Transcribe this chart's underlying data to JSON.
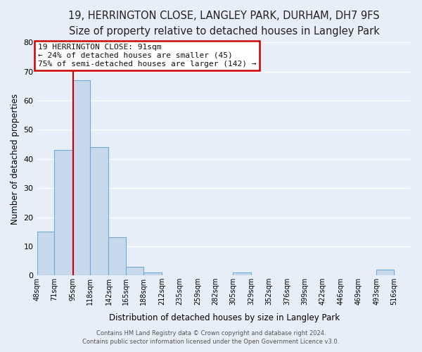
{
  "title": "19, HERRINGTON CLOSE, LANGLEY PARK, DURHAM, DH7 9FS",
  "subtitle": "Size of property relative to detached houses in Langley Park",
  "xlabel": "Distribution of detached houses by size in Langley Park",
  "ylabel": "Number of detached properties",
  "bin_labels": [
    "48sqm",
    "71sqm",
    "95sqm",
    "118sqm",
    "142sqm",
    "165sqm",
    "188sqm",
    "212sqm",
    "235sqm",
    "259sqm",
    "282sqm",
    "305sqm",
    "329sqm",
    "352sqm",
    "376sqm",
    "399sqm",
    "422sqm",
    "446sqm",
    "469sqm",
    "493sqm",
    "516sqm"
  ],
  "bin_values": [
    15,
    43,
    67,
    44,
    13,
    3,
    1,
    0,
    0,
    0,
    0,
    1,
    0,
    0,
    0,
    0,
    0,
    0,
    0,
    2,
    0
  ],
  "bar_color": "#c8d9ee",
  "bar_edge_color": "#6aaad4",
  "bin_edges": [
    48,
    71,
    95,
    118,
    142,
    165,
    188,
    212,
    235,
    259,
    282,
    305,
    329,
    352,
    376,
    399,
    422,
    446,
    469,
    493,
    516,
    539
  ],
  "annotation_line1": "19 HERRINGTON CLOSE: 91sqm",
  "annotation_line2": "← 24% of detached houses are smaller (45)",
  "annotation_line3": "75% of semi-detached houses are larger (142) →",
  "annotation_box_color": "#ffffff",
  "annotation_box_edge": "#cc0000",
  "vline_color": "#cc0000",
  "vline_x": 95,
  "ylim": [
    0,
    80
  ],
  "yticks": [
    0,
    10,
    20,
    30,
    40,
    50,
    60,
    70,
    80
  ],
  "footer1": "Contains HM Land Registry data © Crown copyright and database right 2024.",
  "footer2": "Contains public sector information licensed under the Open Government Licence v3.0.",
  "background_color": "#e8eef7",
  "plot_bg_color": "#e8eef7",
  "grid_color": "#ffffff",
  "title_fontsize": 10.5,
  "subtitle_fontsize": 9.5,
  "ylabel_fontsize": 8.5,
  "xlabel_fontsize": 8.5,
  "tick_fontsize": 7,
  "annotation_fontsize": 8,
  "footer_fontsize": 6
}
